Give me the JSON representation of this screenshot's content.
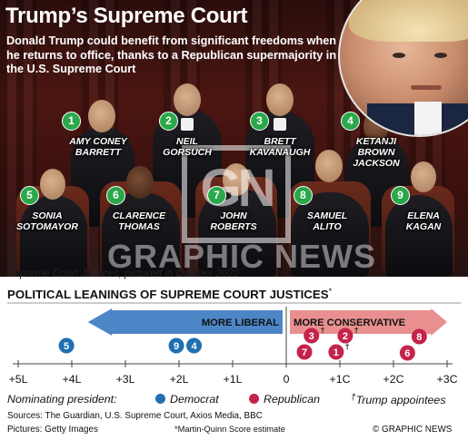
{
  "header": {
    "title": "Trump’s Supreme Court",
    "subtitle": "Donald Trump could benefit from significant freedoms when he returns to office, thanks to a Republican supermajority in the U.S. Supreme Court"
  },
  "justices": [
    {
      "num": "1",
      "name_lines": [
        "AMY CONEY",
        "BARRETT"
      ]
    },
    {
      "num": "2",
      "name_lines": [
        "NEIL",
        "GORSUCH"
      ]
    },
    {
      "num": "3",
      "name_lines": [
        "BRETT",
        "KAVANAUGH"
      ]
    },
    {
      "num": "4",
      "name_lines": [
        "KETANJI",
        "BROWN",
        "JACKSON"
      ]
    },
    {
      "num": "5",
      "name_lines": [
        "SONIA",
        "SOTOMAYOR"
      ]
    },
    {
      "num": "6",
      "name_lines": [
        "CLARENCE",
        "THOMAS"
      ]
    },
    {
      "num": "7",
      "name_lines": [
        "JOHN",
        "ROBERTS"
      ]
    },
    {
      "num": "8",
      "name_lines": [
        "SAMUEL",
        "ALITO"
      ]
    },
    {
      "num": "9",
      "name_lines": [
        "ELENA",
        "KAGAN"
      ]
    }
  ],
  "watermark": {
    "mark": "GN",
    "text": "GRAPHIC NEWS"
  },
  "photo_caption": "Supreme Court Justices, pictured in October 2022",
  "chart_title": "POLITICAL LEANINGS OF SUPREME COURT JUSTICES",
  "chart_title_marker": "*",
  "colors": {
    "democrat": "#1f6fb2",
    "republican": "#c4234a",
    "badge": "#2aa84a",
    "arrow_liberal": "#4d86c6",
    "arrow_conservative": "#e98f8f"
  },
  "chart_data": {
    "type": "scatter",
    "title": "POLITICAL LEANINGS OF SUPREME COURT JUSTICES",
    "xlabel": "",
    "ylabel": "",
    "xlim": [
      -5,
      3
    ],
    "x_tick_values": [
      -5,
      -4,
      -3,
      -2,
      -1,
      0,
      1,
      2,
      3
    ],
    "x_tick_labels": [
      "+5L",
      "+4L",
      "+3L",
      "+2L",
      "+1L",
      "0",
      "+1C",
      "+2C",
      "+3C"
    ],
    "direction_labels": {
      "left": "MORE LIBERAL",
      "right": "MORE CONSERVATIVE"
    },
    "points": [
      {
        "label": "5",
        "x": -4.1,
        "party": "democrat",
        "trump": false
      },
      {
        "label": "9",
        "x": -2.05,
        "party": "democrat",
        "trump": false
      },
      {
        "label": "4",
        "x": -1.72,
        "party": "democrat",
        "trump": false
      },
      {
        "label": "3",
        "x": 0.47,
        "party": "republican",
        "trump": true
      },
      {
        "label": "7",
        "x": 0.34,
        "party": "republican",
        "trump": false
      },
      {
        "label": "2",
        "x": 1.1,
        "party": "republican",
        "trump": true
      },
      {
        "label": "1",
        "x": 0.93,
        "party": "republican",
        "trump": true
      },
      {
        "label": "8",
        "x": 2.48,
        "party": "republican",
        "trump": false
      },
      {
        "label": "6",
        "x": 2.26,
        "party": "republican",
        "trump": false
      }
    ],
    "grid": false
  },
  "legend": {
    "title": "Nominating president:",
    "democrat": "Democrat",
    "republican": "Republican",
    "trump_marker": "†",
    "trump_label": "Trump appointees"
  },
  "footer": {
    "sources": "Sources: The Guardian, U.S. Supreme Court, Axios Media, BBC",
    "pictures": "Pictures: Getty Images",
    "note": "*Martin-Quinn Score estimate",
    "credit": "© GRAPHIC NEWS"
  }
}
